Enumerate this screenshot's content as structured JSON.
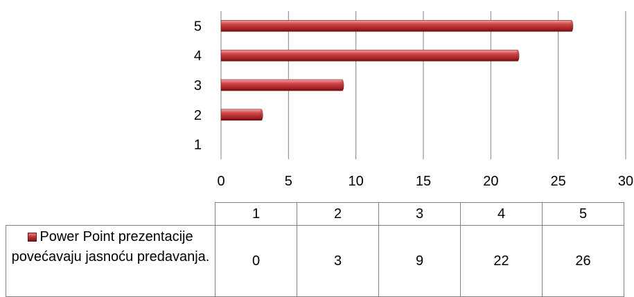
{
  "chart_data": {
    "type": "bar",
    "orientation": "horizontal",
    "categories": [
      "1",
      "2",
      "3",
      "4",
      "5"
    ],
    "series": [
      {
        "name": "Power Point prezentacije povećavaju jasnoću predavanja.",
        "values": [
          0,
          3,
          9,
          22,
          26
        ]
      }
    ],
    "xlim": [
      0,
      30
    ],
    "x_ticks": [
      "0",
      "5",
      "10",
      "15",
      "20",
      "25",
      "30"
    ],
    "grid": "vertical major gridlines",
    "data_table": true,
    "legend": "legend key in data table",
    "colors": {
      "bar": "#c0393b",
      "bar_highlight": "#f29a9a",
      "bar_shadow": "#7d1416",
      "grid": "#808080"
    }
  },
  "table": {
    "headers": [
      "1",
      "2",
      "3",
      "4",
      "5"
    ],
    "series_label": "Power Point prezentacije povećavaju jasnoću predavanja.",
    "values": [
      "0",
      "3",
      "9",
      "22",
      "26"
    ]
  }
}
